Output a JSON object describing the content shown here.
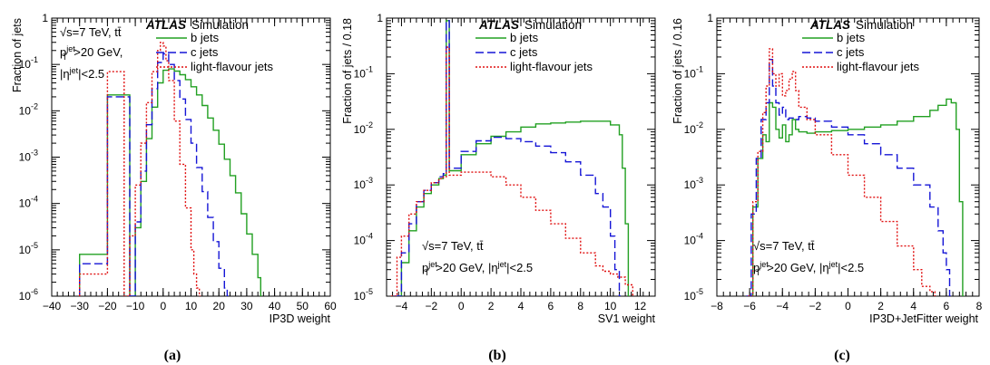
{
  "chart_data": [
    {
      "type": "line",
      "panel_label": "(a)",
      "xlabel": "IP3D weight",
      "ylabel": "Fraction of jets",
      "xlim": [
        -40,
        60
      ],
      "ylim": [
        1e-06,
        1
      ],
      "log_y": true,
      "xticks": [
        "−40",
        "−30",
        "−20",
        "−10",
        "0",
        "10",
        "20",
        "30",
        "40",
        "50",
        "60"
      ],
      "yticks": [
        "10",
        "10",
        "10",
        "10",
        "10",
        "10",
        "1"
      ],
      "ytick_exponents": [
        "-6",
        "-5",
        "-4",
        "-3",
        "-2",
        "-1",
        ""
      ],
      "atlas_label": "ATLAS",
      "simulation_label": "Simulation",
      "info_lines": [
        "√s=7 TeV, tt̄",
        "p_T^jet>20 GeV,",
        "|η^jet|<2.5"
      ],
      "legend": [
        "b jets",
        "c jets",
        "light-flavour jets"
      ],
      "series": [
        {
          "name": "b jets",
          "color": "#22a022",
          "dash": "solid",
          "x": [
            -30,
            -20,
            -12,
            -10,
            -8,
            -6,
            -4,
            -2,
            0,
            2,
            4,
            6,
            8,
            10,
            12,
            14,
            16,
            18,
            20,
            22,
            24,
            26,
            28,
            30,
            32,
            34,
            35
          ],
          "y": [
            8e-06,
            0.022,
            1e-06,
            3e-05,
            0.0003,
            0.0025,
            0.012,
            0.04,
            0.075,
            0.08,
            0.072,
            0.06,
            0.047,
            0.033,
            0.022,
            0.013,
            0.007,
            0.0038,
            0.0019,
            0.0009,
            0.0004,
            0.00017,
            6e-05,
            2.2e-05,
            8e-06,
            2.5e-06,
            1e-06
          ]
        },
        {
          "name": "c jets",
          "color": "#1515d6",
          "dash": "dashed",
          "x": [
            -30,
            -20,
            -12,
            -10,
            -8,
            -6,
            -4,
            -2,
            0,
            2,
            4,
            6,
            8,
            10,
            12,
            14,
            16,
            18,
            20,
            22,
            23
          ],
          "y": [
            5e-06,
            0.02,
            1e-06,
            4e-05,
            0.0005,
            0.005,
            0.03,
            0.11,
            0.17,
            0.1,
            0.045,
            0.018,
            0.0065,
            0.002,
            0.0006,
            0.00018,
            5e-05,
            1.5e-05,
            4e-06,
            1.5e-06,
            1e-06
          ]
        },
        {
          "name": "light-flavour jets",
          "color": "#e01010",
          "dash": "dotted",
          "x": [
            -30,
            -20,
            -14,
            -12,
            -10,
            -8,
            -6,
            -4,
            -2,
            -1,
            0,
            1,
            2,
            4,
            6,
            8,
            10,
            11,
            12,
            13
          ],
          "y": [
            3e-06,
            0.07,
            1e-06,
            2e-05,
            0.00025,
            0.002,
            0.015,
            0.07,
            0.2,
            0.3,
            0.25,
            0.12,
            0.045,
            0.006,
            0.0007,
            8e-05,
            1e-05,
            3e-06,
            1.5e-06,
            1e-06
          ]
        }
      ]
    },
    {
      "type": "line",
      "panel_label": "(b)",
      "xlabel": "SV1 weight",
      "ylabel": "Fraction of jets / 0.18",
      "xlim": [
        -5,
        13
      ],
      "ylim": [
        1e-05,
        1
      ],
      "log_y": true,
      "xticks": [
        "−4",
        "−2",
        "0",
        "2",
        "4",
        "6",
        "8",
        "10",
        "12"
      ],
      "yticks": [
        "10",
        "10",
        "10",
        "10",
        "10",
        "1"
      ],
      "ytick_exponents": [
        "-5",
        "-4",
        "-3",
        "-2",
        "-1",
        ""
      ],
      "atlas_label": "ATLAS",
      "simulation_label": "Simulation",
      "info_lines": [
        "√s=7 TeV, tt̄",
        "p_T^jet>20 GeV, |η^jet|<2.5"
      ],
      "legend": [
        "b jets",
        "c jets",
        "light-flavour jets"
      ],
      "series": [
        {
          "name": "b jets",
          "color": "#22a022",
          "dash": "solid",
          "x": [
            -4.3,
            -4,
            -3.5,
            -3,
            -2.5,
            -2,
            -1.5,
            -1.2,
            -1.0,
            -0.8,
            0,
            1,
            2,
            3,
            4,
            5,
            6,
            7,
            8,
            9,
            10,
            10.6,
            10.8,
            11,
            11.2
          ],
          "y": [
            1e-05,
            4e-05,
            0.00015,
            0.0004,
            0.0007,
            0.001,
            0.0013,
            0.0015,
            0.9,
            0.0018,
            0.0035,
            0.0055,
            0.0075,
            0.009,
            0.011,
            0.0125,
            0.013,
            0.0135,
            0.014,
            0.014,
            0.012,
            0.008,
            0.002,
            0.0002,
            1e-05
          ]
        },
        {
          "name": "c jets",
          "color": "#1515d6",
          "dash": "dashed",
          "x": [
            -4.5,
            -4,
            -3.5,
            -3,
            -2.5,
            -2,
            -1.5,
            -1.2,
            -1.0,
            -0.8,
            0,
            1,
            2,
            3,
            4,
            5,
            6,
            7,
            8,
            9,
            9.5,
            10,
            10.3,
            10.6
          ],
          "y": [
            1e-05,
            6e-05,
            0.0002,
            0.0005,
            0.0008,
            0.0011,
            0.0014,
            0.0016,
            0.9,
            0.002,
            0.004,
            0.0062,
            0.0072,
            0.0068,
            0.006,
            0.005,
            0.0038,
            0.0026,
            0.0015,
            0.0007,
            0.0004,
            0.00012,
            3e-05,
            1e-05
          ]
        },
        {
          "name": "light-flavour jets",
          "color": "#e01010",
          "dash": "dotted",
          "x": [
            -4.7,
            -4.3,
            -4,
            -3.5,
            -3,
            -2.5,
            -2,
            -1.5,
            -1.2,
            -1.0,
            -0.8,
            0,
            1,
            2,
            3,
            4,
            5,
            6,
            7,
            8,
            9,
            9.5,
            10,
            10.5,
            11,
            11.5
          ],
          "y": [
            1e-05,
            5e-05,
            0.00012,
            0.0003,
            0.0005,
            0.0008,
            0.0011,
            0.0013,
            0.0014,
            0.3,
            0.0015,
            0.0017,
            0.0017,
            0.0014,
            0.001,
            0.0006,
            0.00035,
            0.0002,
            0.00011,
            6e-05,
            3.5e-05,
            2.8e-05,
            2.5e-05,
            2.2e-05,
            1.6e-05,
            1e-05
          ]
        }
      ]
    },
    {
      "type": "line",
      "panel_label": "(c)",
      "xlabel": "IP3D+JetFitter weight",
      "ylabel": "Fraction of jets / 0.16",
      "xlim": [
        -8,
        8
      ],
      "ylim": [
        1e-05,
        1
      ],
      "log_y": true,
      "xticks": [
        "−8",
        "−6",
        "−4",
        "−2",
        "0",
        "2",
        "4",
        "6",
        "8"
      ],
      "yticks": [
        "10",
        "10",
        "10",
        "10",
        "10",
        "1"
      ],
      "ytick_exponents": [
        "-5",
        "-4",
        "-3",
        "-2",
        "-1",
        ""
      ],
      "atlas_label": "ATLAS",
      "simulation_label": "Simulation",
      "info_lines": [
        "√s=7 TeV, tt̄",
        "p_T^jet>20 GeV, |η^jet|<2.5"
      ],
      "legend": [
        "b jets",
        "c jets",
        "light-flavour jets"
      ],
      "series": [
        {
          "name": "b jets",
          "color": "#22a022",
          "dash": "solid",
          "x": [
            -6.0,
            -5.8,
            -5.5,
            -5.2,
            -5.0,
            -4.8,
            -4.6,
            -4.4,
            -4.2,
            -4.0,
            -3.8,
            -3.6,
            -3.4,
            -3.2,
            -3.0,
            -2.5,
            -2,
            -1,
            0,
            1,
            2,
            3,
            4,
            5,
            5.5,
            6,
            6.3,
            6.6,
            6.8,
            7.0
          ],
          "y": [
            1e-05,
            0.0004,
            0.003,
            0.008,
            0.006,
            0.03,
            0.025,
            0.01,
            0.007,
            0.012,
            0.006,
            0.008,
            0.015,
            0.01,
            0.009,
            0.0085,
            0.009,
            0.0095,
            0.01,
            0.011,
            0.012,
            0.014,
            0.017,
            0.022,
            0.027,
            0.035,
            0.03,
            0.01,
            0.0005,
            1e-05
          ]
        },
        {
          "name": "c jets",
          "color": "#1515d6",
          "dash": "dashed",
          "x": [
            -6.2,
            -5.9,
            -5.6,
            -5.3,
            -5.0,
            -4.8,
            -4.6,
            -4.4,
            -4.2,
            -4.0,
            -3.8,
            -3.6,
            -3.3,
            -3.0,
            -2.5,
            -2,
            -1,
            0,
            1,
            2,
            3,
            4,
            5,
            5.5,
            5.8,
            6.0,
            6.2
          ],
          "y": [
            1e-05,
            0.0003,
            0.003,
            0.015,
            0.03,
            0.18,
            0.06,
            0.03,
            0.018,
            0.025,
            0.015,
            0.016,
            0.015,
            0.017,
            0.016,
            0.014,
            0.011,
            0.008,
            0.0055,
            0.0035,
            0.002,
            0.001,
            0.0004,
            0.00015,
            6e-05,
            3e-05,
            1e-05
          ]
        },
        {
          "name": "light-flavour jets",
          "color": "#e01010",
          "dash": "dotted",
          "x": [
            -6.1,
            -5.8,
            -5.5,
            -5.2,
            -5.0,
            -4.8,
            -4.6,
            -4.4,
            -4.2,
            -4.0,
            -3.8,
            -3.6,
            -3.4,
            -3.2,
            -3.0,
            -2.5,
            -2,
            -1,
            0,
            1,
            2,
            3,
            4,
            4.5,
            5.0,
            5.3
          ],
          "y": [
            1e-05,
            0.0005,
            0.004,
            0.02,
            0.06,
            0.28,
            0.1,
            0.06,
            0.1,
            0.04,
            0.05,
            0.08,
            0.11,
            0.05,
            0.025,
            0.015,
            0.008,
            0.0035,
            0.0015,
            0.0006,
            0.00022,
            8e-05,
            3e-05,
            1.5e-05,
            1.2e-05,
            1e-05
          ]
        }
      ]
    }
  ]
}
